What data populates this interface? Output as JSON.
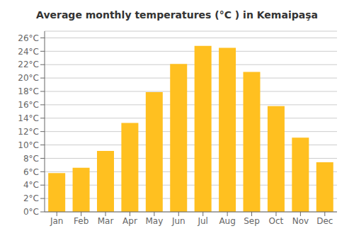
{
  "chart_data": {
    "type": "bar",
    "title": "Average monthly temperatures (°C ) in Kemaipaşa",
    "categories": [
      "Jan",
      "Feb",
      "Mar",
      "Apr",
      "May",
      "Jun",
      "Jul",
      "Aug",
      "Sep",
      "Oct",
      "Nov",
      "Dec"
    ],
    "values": [
      5.8,
      6.6,
      9.1,
      13.3,
      17.9,
      22.1,
      24.8,
      24.5,
      20.9,
      15.8,
      11.1,
      7.4
    ],
    "color": "#FFC020",
    "ylim": [
      0,
      27
    ],
    "yticks": [
      {
        "value": 0,
        "label": "0°C"
      },
      {
        "value": 2,
        "label": "2°C"
      },
      {
        "value": 4,
        "label": "4°C"
      },
      {
        "value": 6,
        "label": "6°C"
      },
      {
        "value": 8,
        "label": "8°C"
      },
      {
        "value": 10,
        "label": "10°C"
      },
      {
        "value": 12,
        "label": "12°C"
      },
      {
        "value": 14,
        "label": "14°C"
      },
      {
        "value": 16,
        "label": "16°C"
      },
      {
        "value": 18,
        "label": "18°C"
      },
      {
        "value": 20,
        "label": "20°C"
      },
      {
        "value": 22,
        "label": "22°C"
      },
      {
        "value": 24,
        "label": "24°C"
      },
      {
        "value": 26,
        "label": "26°C"
      }
    ],
    "grid": true
  }
}
